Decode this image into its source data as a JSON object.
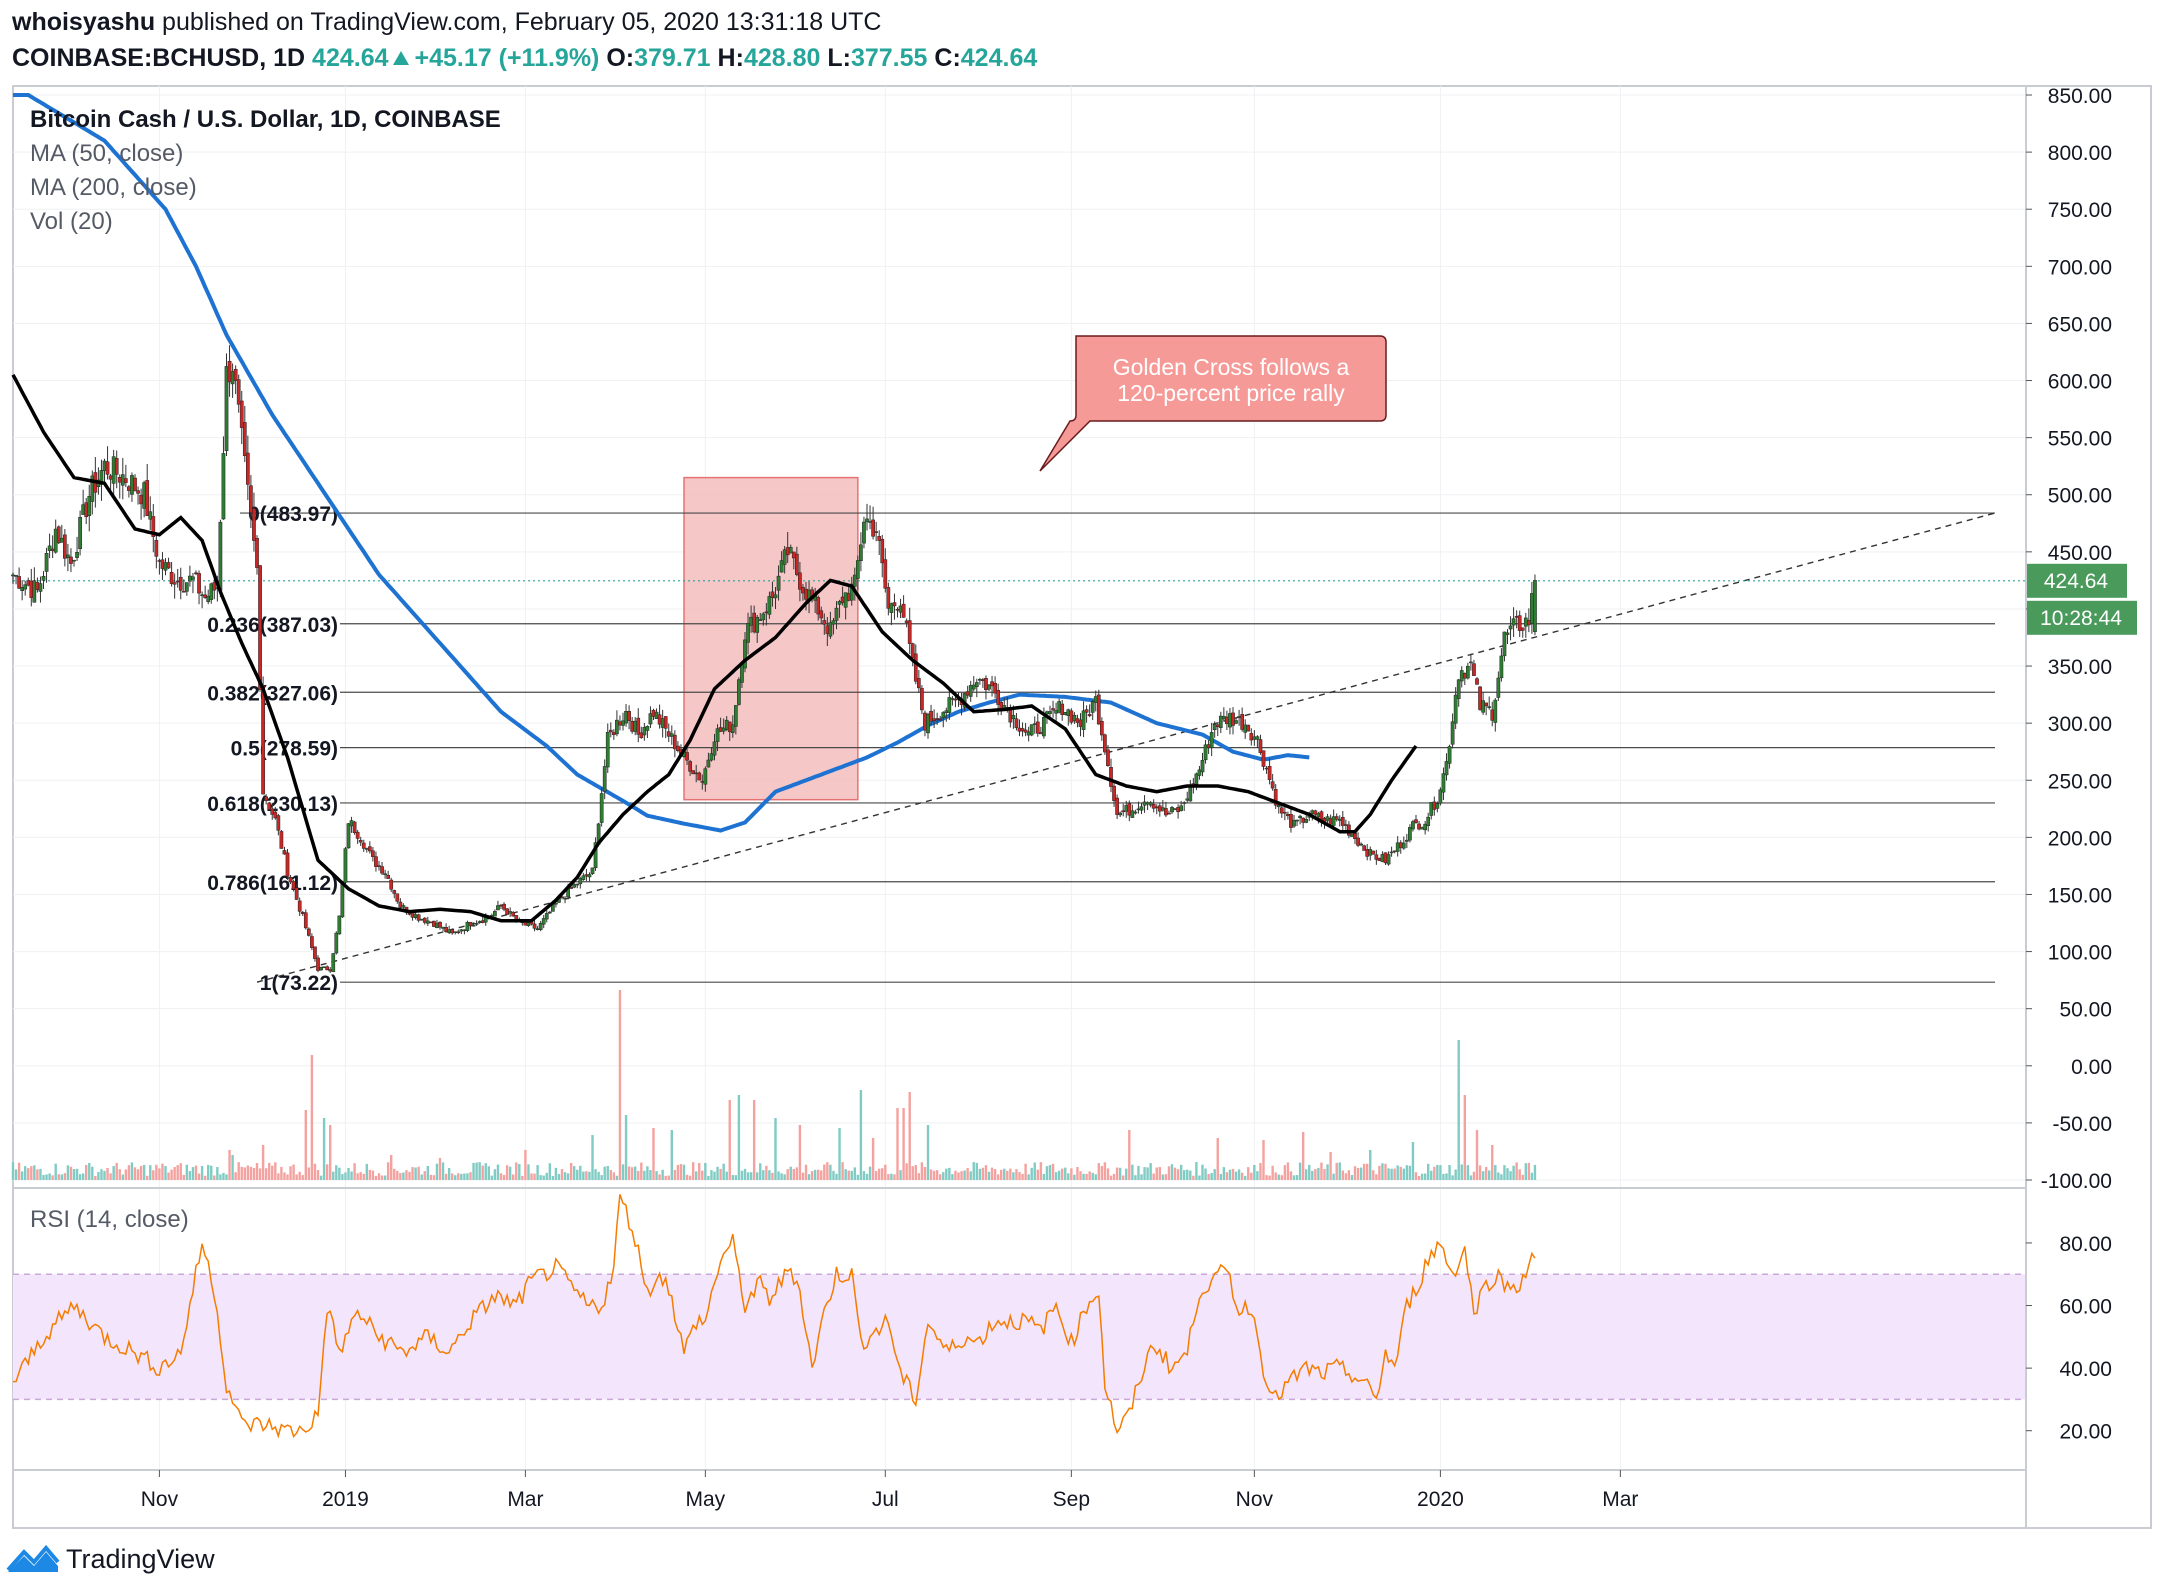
{
  "header": {
    "author": "whoisyashu",
    "published": "published on TradingView.com, February 05, 2020 13:31:18 UTC",
    "symbol": "COINBASE:BCHUSD, 1D",
    "last": "424.64",
    "change": "+45.17 (+11.9%)",
    "o_label": "O:",
    "o": "379.71",
    "h_label": "H:",
    "h": "428.80",
    "l_label": "L:",
    "l": "377.55",
    "c_label": "C:",
    "c": "424.64"
  },
  "legend": {
    "title": "Bitcoin Cash / U.S. Dollar, 1D, COINBASE",
    "ma50": "MA (50, close)",
    "ma200": "MA (200, close)",
    "vol": "Vol (20)",
    "rsi": "RSI (14, close)"
  },
  "colors": {
    "up": "#26a69a",
    "down": "#ef5350",
    "upBody": "#2e7d32",
    "downBody": "#c62828",
    "ma50": "#000000",
    "ma200": "#1e73d2",
    "rsi": "#f57c00",
    "box": "#f4bdbd"
  },
  "annotation": {
    "line1": "Golden Cross follows a",
    "line2": "120-percent price rally"
  },
  "price_label": {
    "price": "424.64",
    "countdown": "10:28:44"
  },
  "footer": {
    "brand": "TradingView"
  },
  "chart_data": {
    "type": "candlestick",
    "title": "Bitcoin Cash / U.S. Dollar, 1D, COINBASE",
    "price_axis": {
      "min": -100,
      "max": 850,
      "ticks": [
        "850.00",
        "800.00",
        "750.00",
        "700.00",
        "650.00",
        "600.00",
        "550.00",
        "500.00",
        "450.00",
        "400.00",
        "350.00",
        "300.00",
        "250.00",
        "200.00",
        "150.00",
        "100.00",
        "50.00",
        "0.00",
        "-50.00",
        "-100.00"
      ]
    },
    "rsi_axis": {
      "min": 10,
      "max": 95,
      "ticks": [
        "80.00",
        "60.00",
        "40.00",
        "20.00"
      ],
      "band": [
        30,
        70
      ]
    },
    "x_axis": {
      "ticks": [
        "Nov",
        "2019",
        "Mar",
        "May",
        "Jul",
        "Sep",
        "Nov",
        "2020",
        "Mar"
      ]
    },
    "fib_levels": [
      {
        "ratio": "0",
        "price": 483.97,
        "label": "0(483.97)"
      },
      {
        "ratio": "0.236",
        "price": 387.03,
        "label": "0.236(387.03)"
      },
      {
        "ratio": "0.382",
        "price": 327.06,
        "label": "0.382(327.06)"
      },
      {
        "ratio": "0.5",
        "price": 278.59,
        "label": "0.5(278.59)"
      },
      {
        "ratio": "0.618",
        "price": 230.13,
        "label": "0.618(230.13)"
      },
      {
        "ratio": "0.786",
        "price": 161.12,
        "label": "0.786(161.12)"
      },
      {
        "ratio": "1",
        "price": 73.22,
        "label": "1(73.22)"
      }
    ],
    "price_anchors": [
      [
        0,
        430
      ],
      [
        8,
        415
      ],
      [
        14,
        470
      ],
      [
        19,
        440
      ],
      [
        25,
        500
      ],
      [
        30,
        525
      ],
      [
        37,
        515
      ],
      [
        43,
        500
      ],
      [
        48,
        440
      ],
      [
        54,
        425
      ],
      [
        59,
        425
      ],
      [
        63,
        410
      ],
      [
        67,
        420
      ],
      [
        70,
        605
      ],
      [
        72,
        615
      ],
      [
        77,
        500
      ],
      [
        80,
        435
      ],
      [
        82,
        240
      ],
      [
        86,
        215
      ],
      [
        90,
        170
      ],
      [
        95,
        130
      ],
      [
        100,
        85
      ],
      [
        104,
        85
      ],
      [
        107,
        130
      ],
      [
        110,
        215
      ],
      [
        114,
        200
      ],
      [
        118,
        180
      ],
      [
        122,
        170
      ],
      [
        127,
        140
      ],
      [
        133,
        130
      ],
      [
        138,
        125
      ],
      [
        144,
        115
      ],
      [
        150,
        125
      ],
      [
        156,
        130
      ],
      [
        160,
        140
      ],
      [
        166,
        125
      ],
      [
        172,
        120
      ],
      [
        179,
        145
      ],
      [
        185,
        160
      ],
      [
        190,
        170
      ],
      [
        193,
        240
      ],
      [
        195,
        285
      ],
      [
        198,
        300
      ],
      [
        201,
        310
      ],
      [
        205,
        290
      ],
      [
        210,
        310
      ],
      [
        215,
        290
      ],
      [
        220,
        270
      ],
      [
        226,
        250
      ],
      [
        230,
        290
      ],
      [
        236,
        300
      ],
      [
        240,
        380
      ],
      [
        245,
        395
      ],
      [
        249,
        410
      ],
      [
        254,
        450
      ],
      [
        259,
        420
      ],
      [
        264,
        400
      ],
      [
        268,
        380
      ],
      [
        272,
        410
      ],
      [
        276,
        420
      ],
      [
        279,
        480
      ],
      [
        283,
        470
      ],
      [
        287,
        400
      ],
      [
        291,
        410
      ],
      [
        295,
        350
      ],
      [
        299,
        300
      ],
      [
        304,
        310
      ],
      [
        310,
        320
      ],
      [
        316,
        340
      ],
      [
        321,
        330
      ],
      [
        328,
        305
      ],
      [
        333,
        290
      ],
      [
        338,
        300
      ],
      [
        344,
        315
      ],
      [
        350,
        300
      ],
      [
        355,
        320
      ],
      [
        358,
        280
      ],
      [
        362,
        220
      ],
      [
        367,
        225
      ],
      [
        372,
        235
      ],
      [
        378,
        220
      ],
      [
        383,
        225
      ],
      [
        389,
        260
      ],
      [
        394,
        300
      ],
      [
        399,
        305
      ],
      [
        404,
        300
      ],
      [
        408,
        285
      ],
      [
        411,
        260
      ],
      [
        415,
        225
      ],
      [
        420,
        210
      ],
      [
        425,
        220
      ],
      [
        430,
        215
      ],
      [
        435,
        215
      ],
      [
        440,
        200
      ],
      [
        445,
        185
      ],
      [
        450,
        180
      ],
      [
        455,
        195
      ],
      [
        459,
        210
      ],
      [
        463,
        215
      ],
      [
        467,
        235
      ],
      [
        470,
        265
      ],
      [
        474,
        345
      ],
      [
        478,
        350
      ],
      [
        481,
        315
      ],
      [
        485,
        310
      ],
      [
        489,
        375
      ],
      [
        493,
        385
      ],
      [
        497,
        390
      ],
      [
        499,
        425
      ]
    ],
    "ma50_anchors": [
      [
        0,
        605
      ],
      [
        10,
        555
      ],
      [
        20,
        515
      ],
      [
        30,
        510
      ],
      [
        40,
        470
      ],
      [
        48,
        465
      ],
      [
        55,
        480
      ],
      [
        62,
        460
      ],
      [
        68,
        415
      ],
      [
        75,
        370
      ],
      [
        82,
        330
      ],
      [
        90,
        270
      ],
      [
        100,
        180
      ],
      [
        110,
        155
      ],
      [
        120,
        140
      ],
      [
        130,
        135
      ],
      [
        140,
        137
      ],
      [
        150,
        135
      ],
      [
        160,
        127
      ],
      [
        170,
        127
      ],
      [
        178,
        145
      ],
      [
        185,
        165
      ],
      [
        192,
        195
      ],
      [
        200,
        220
      ],
      [
        208,
        240
      ],
      [
        215,
        255
      ],
      [
        222,
        285
      ],
      [
        230,
        330
      ],
      [
        240,
        355
      ],
      [
        250,
        375
      ],
      [
        260,
        405
      ],
      [
        268,
        425
      ],
      [
        275,
        420
      ],
      [
        285,
        380
      ],
      [
        295,
        355
      ],
      [
        305,
        335
      ],
      [
        315,
        310
      ],
      [
        325,
        312
      ],
      [
        334,
        315
      ],
      [
        345,
        295
      ],
      [
        355,
        255
      ],
      [
        365,
        245
      ],
      [
        375,
        240
      ],
      [
        385,
        245
      ],
      [
        395,
        245
      ],
      [
        405,
        240
      ],
      [
        415,
        230
      ],
      [
        425,
        220
      ],
      [
        435,
        205
      ],
      [
        440,
        205
      ],
      [
        445,
        220
      ],
      [
        452,
        250
      ],
      [
        460,
        280
      ]
    ],
    "ma200_anchors": [
      [
        5,
        850
      ],
      [
        30,
        810
      ],
      [
        50,
        750
      ],
      [
        60,
        700
      ],
      [
        70,
        640
      ],
      [
        85,
        570
      ],
      [
        100,
        510
      ],
      [
        120,
        430
      ],
      [
        140,
        370
      ],
      [
        160,
        310
      ],
      [
        175,
        280
      ],
      [
        185,
        255
      ],
      [
        200,
        232
      ],
      [
        208,
        219
      ],
      [
        220,
        212
      ],
      [
        232,
        206
      ],
      [
        240,
        213
      ],
      [
        250,
        240
      ],
      [
        260,
        250
      ],
      [
        270,
        260
      ],
      [
        280,
        270
      ],
      [
        290,
        283
      ],
      [
        300,
        298
      ],
      [
        310,
        310
      ],
      [
        320,
        318
      ],
      [
        330,
        325
      ],
      [
        345,
        323
      ],
      [
        360,
        318
      ],
      [
        375,
        300
      ],
      [
        390,
        290
      ],
      [
        400,
        275
      ],
      [
        410,
        268
      ],
      [
        418,
        272
      ],
      [
        425,
        270
      ]
    ],
    "rsi_anchors": [
      [
        0,
        35
      ],
      [
        10,
        50
      ],
      [
        20,
        60
      ],
      [
        30,
        50
      ],
      [
        40,
        45
      ],
      [
        48,
        40
      ],
      [
        55,
        45
      ],
      [
        62,
        80
      ],
      [
        66,
        65
      ],
      [
        70,
        35
      ],
      [
        75,
        22
      ],
      [
        82,
        22
      ],
      [
        90,
        20
      ],
      [
        95,
        20
      ],
      [
        100,
        25
      ],
      [
        103,
        60
      ],
      [
        107,
        45
      ],
      [
        113,
        58
      ],
      [
        120,
        50
      ],
      [
        128,
        45
      ],
      [
        136,
        50
      ],
      [
        143,
        45
      ],
      [
        150,
        55
      ],
      [
        158,
        63
      ],
      [
        165,
        60
      ],
      [
        170,
        68
      ],
      [
        178,
        72
      ],
      [
        188,
        60
      ],
      [
        193,
        60
      ],
      [
        197,
        72
      ],
      [
        199,
        95
      ],
      [
        203,
        85
      ],
      [
        208,
        65
      ],
      [
        214,
        70
      ],
      [
        220,
        45
      ],
      [
        224,
        55
      ],
      [
        227,
        55
      ],
      [
        232,
        75
      ],
      [
        236,
        80
      ],
      [
        240,
        60
      ],
      [
        245,
        67
      ],
      [
        248,
        62
      ],
      [
        255,
        72
      ],
      [
        258,
        65
      ],
      [
        262,
        40
      ],
      [
        266,
        58
      ],
      [
        270,
        70
      ],
      [
        275,
        70
      ],
      [
        278,
        48
      ],
      [
        283,
        52
      ],
      [
        287,
        55
      ],
      [
        291,
        38
      ],
      [
        296,
        30
      ],
      [
        300,
        55
      ],
      [
        306,
        45
      ],
      [
        312,
        50
      ],
      [
        316,
        48
      ],
      [
        322,
        55
      ],
      [
        327,
        55
      ],
      [
        332,
        55
      ],
      [
        337,
        52
      ],
      [
        342,
        60
      ],
      [
        347,
        48
      ],
      [
        352,
        60
      ],
      [
        356,
        65
      ],
      [
        358,
        35
      ],
      [
        362,
        20
      ],
      [
        366,
        25
      ],
      [
        370,
        38
      ],
      [
        374,
        48
      ],
      [
        380,
        40
      ],
      [
        385,
        45
      ],
      [
        389,
        65
      ],
      [
        394,
        68
      ],
      [
        398,
        72
      ],
      [
        402,
        58
      ],
      [
        406,
        60
      ],
      [
        410,
        40
      ],
      [
        414,
        30
      ],
      [
        418,
        35
      ],
      [
        424,
        40
      ],
      [
        429,
        38
      ],
      [
        434,
        40
      ],
      [
        439,
        38
      ],
      [
        443,
        35
      ],
      [
        447,
        30
      ],
      [
        450,
        45
      ],
      [
        453,
        40
      ],
      [
        457,
        60
      ],
      [
        460,
        65
      ],
      [
        464,
        75
      ],
      [
        468,
        80
      ],
      [
        472,
        70
      ],
      [
        476,
        78
      ],
      [
        479,
        58
      ],
      [
        482,
        65
      ],
      [
        486,
        70
      ],
      [
        490,
        66
      ],
      [
        494,
        67
      ],
      [
        498,
        74
      ]
    ],
    "volume_spikes": [
      [
        28,
        8
      ],
      [
        50,
        14
      ],
      [
        71,
        30
      ],
      [
        72,
        25
      ],
      [
        82,
        35
      ],
      [
        96,
        70
      ],
      [
        98,
        125
      ],
      [
        102,
        62
      ],
      [
        104,
        55
      ],
      [
        124,
        25
      ],
      [
        140,
        22
      ],
      [
        168,
        30
      ],
      [
        190,
        45
      ],
      [
        199,
        190
      ],
      [
        201,
        65
      ],
      [
        210,
        52
      ],
      [
        216,
        50
      ],
      [
        235,
        80
      ],
      [
        238,
        85
      ],
      [
        243,
        80
      ],
      [
        250,
        62
      ],
      [
        258,
        55
      ],
      [
        271,
        52
      ],
      [
        278,
        90
      ],
      [
        282,
        42
      ],
      [
        290,
        72
      ],
      [
        292,
        72
      ],
      [
        294,
        88
      ],
      [
        300,
        55
      ],
      [
        366,
        50
      ],
      [
        395,
        42
      ],
      [
        410,
        40
      ],
      [
        423,
        48
      ],
      [
        432,
        28
      ],
      [
        445,
        30
      ],
      [
        459,
        38
      ],
      [
        474,
        140
      ],
      [
        476,
        85
      ],
      [
        480,
        50
      ],
      [
        485,
        35
      ]
    ],
    "golden_cross_box": {
      "x": [
        220,
        277
      ],
      "y": [
        233,
        515
      ]
    }
  }
}
